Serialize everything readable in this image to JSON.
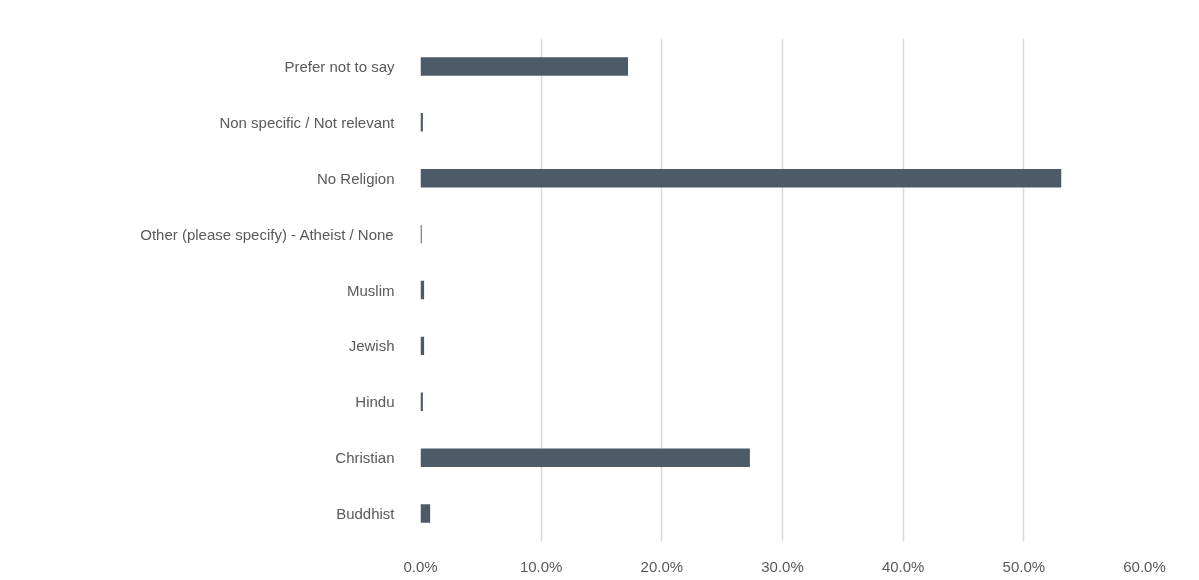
{
  "chart_data": {
    "type": "bar",
    "orientation": "horizontal",
    "categories": [
      "Prefer not to say",
      "Non specific / Not relevant",
      "No Religion",
      "Other (please specify) - Atheist / None",
      "Muslim",
      "Jewish",
      "Hindu",
      "Christian",
      "Buddhist"
    ],
    "values": [
      17.2,
      0.2,
      53.1,
      0.1,
      0.3,
      0.3,
      0.2,
      27.3,
      0.8
    ],
    "color": "#4d5b69",
    "xlim": [
      0,
      60
    ],
    "xticks": [
      {
        "value": 0,
        "label": "0.0%"
      },
      {
        "value": 10,
        "label": "10.0%"
      },
      {
        "value": 20,
        "label": "20.0%"
      },
      {
        "value": 30,
        "label": "30.0%"
      },
      {
        "value": 40,
        "label": "40.0%"
      },
      {
        "value": 50,
        "label": "50.0%"
      },
      {
        "value": 60,
        "label": "60.0%"
      }
    ],
    "grid": "x"
  }
}
